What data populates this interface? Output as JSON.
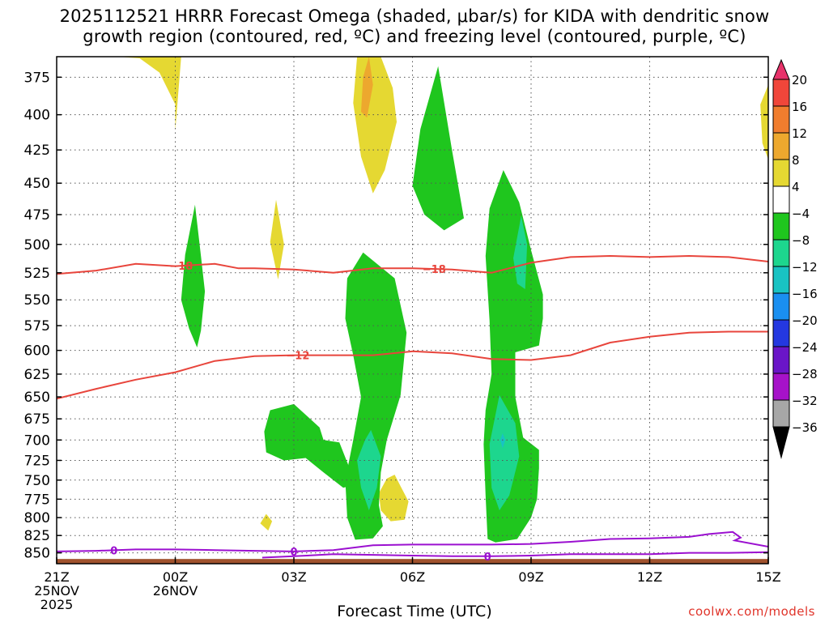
{
  "title_line1": "2025112521 HRRR Forecast Omega (shaded, μbar/s) for KIDA with dendritic snow",
  "title_line2": "growth region (contoured, red, ºC) and freezing level (contoured, purple, ºC)",
  "credit": "coolwx.com/models",
  "colors": {
    "temp_contour": "#e8453c",
    "freezing_contour": "#9b10d0",
    "ground": "#a0522d",
    "grid": "#555555"
  },
  "chart_data": {
    "type": "heatmap",
    "title": "2025112521 HRRR Forecast Omega (shaded, μbar/s) for KIDA with dendritic snow growth region (contoured, red, ºC) and freezing level (contoured, purple, ºC)",
    "xlabel": "Forecast Time (UTC)",
    "ylabel": "",
    "x_hours_range": [
      0,
      18
    ],
    "x_ticks": [
      {
        "hour": 0,
        "lines": [
          "21Z",
          "25NOV",
          "2025"
        ]
      },
      {
        "hour": 3,
        "lines": [
          "00Z",
          "26NOV"
        ]
      },
      {
        "hour": 6,
        "lines": [
          "03Z"
        ]
      },
      {
        "hour": 9,
        "lines": [
          "06Z"
        ]
      },
      {
        "hour": 12,
        "lines": [
          "09Z"
        ]
      },
      {
        "hour": 15,
        "lines": [
          "12Z"
        ]
      },
      {
        "hour": 18,
        "lines": [
          "15Z"
        ]
      }
    ],
    "y_range_hPa": [
      362,
      866
    ],
    "y_ticks_hPa": [
      375,
      400,
      425,
      450,
      475,
      500,
      525,
      550,
      575,
      600,
      625,
      650,
      675,
      700,
      725,
      750,
      775,
      800,
      825,
      850
    ],
    "colorbar": {
      "labels": [
        "20",
        "16",
        "12",
        "8",
        "4",
        "−4",
        "−8",
        "−12",
        "−16",
        "−20",
        "−24",
        "−28",
        "−32",
        "−36"
      ],
      "colors": [
        "#e8336a",
        "#f0463a",
        "#f07d2e",
        "#eda82e",
        "#e5d832",
        "#ffffff",
        "#1fc61e",
        "#1dd68e",
        "#19c3c3",
        "#1a8ff0",
        "#2438e0",
        "#6a15c8",
        "#a612c9",
        "#a7a7a7"
      ]
    },
    "omega_regions": [
      {
        "id": "y1",
        "level": "4",
        "points": [
          [
            1.55,
            362
          ],
          [
            2.1,
            363
          ],
          [
            2.6,
            372
          ],
          [
            3.0,
            393
          ],
          [
            3.0,
            411
          ],
          [
            3.15,
            362
          ]
        ]
      },
      {
        "id": "y2",
        "level": "4",
        "points": [
          [
            8.2,
            362
          ],
          [
            8.5,
            382
          ],
          [
            8.6,
            405
          ],
          [
            8.3,
            440
          ],
          [
            8.0,
            458
          ],
          [
            7.7,
            430
          ],
          [
            7.5,
            392
          ],
          [
            7.6,
            362
          ]
        ]
      },
      {
        "id": "o1",
        "level": "8",
        "points": [
          [
            7.9,
            362
          ],
          [
            8.0,
            380
          ],
          [
            7.85,
            402
          ],
          [
            7.7,
            398
          ],
          [
            7.75,
            375
          ]
        ]
      },
      {
        "id": "y3",
        "level": "4",
        "points": [
          [
            5.55,
            463
          ],
          [
            5.75,
            500
          ],
          [
            5.6,
            531
          ],
          [
            5.4,
            498
          ]
        ]
      },
      {
        "id": "y4",
        "level": "4",
        "points": [
          [
            18.0,
            380
          ],
          [
            17.8,
            393
          ],
          [
            17.85,
            420
          ],
          [
            18.0,
            432
          ]
        ]
      },
      {
        "id": "y5",
        "level": "4",
        "points": [
          [
            8.55,
            743
          ],
          [
            8.7,
            758
          ],
          [
            8.9,
            778
          ],
          [
            8.8,
            803
          ],
          [
            8.45,
            805
          ],
          [
            8.2,
            790
          ],
          [
            8.15,
            767
          ],
          [
            8.35,
            748
          ]
        ]
      },
      {
        "id": "y6",
        "level": "4",
        "points": [
          [
            5.3,
            795
          ],
          [
            5.45,
            805
          ],
          [
            5.35,
            818
          ],
          [
            5.15,
            808
          ]
        ]
      },
      {
        "id": "g1",
        "level": "-4",
        "points": [
          [
            3.5,
            467
          ],
          [
            3.65,
            510
          ],
          [
            3.75,
            542
          ],
          [
            3.65,
            580
          ],
          [
            3.55,
            597
          ],
          [
            3.35,
            578
          ],
          [
            3.15,
            550
          ],
          [
            3.25,
            509
          ]
        ]
      },
      {
        "id": "g2",
        "level": "-4",
        "points": [
          [
            9.65,
            368
          ],
          [
            10.0,
            425
          ],
          [
            10.3,
            478
          ],
          [
            9.8,
            488
          ],
          [
            9.3,
            475
          ],
          [
            9.0,
            452
          ],
          [
            9.2,
            410
          ]
        ]
      },
      {
        "id": "g3",
        "level": "-4",
        "points": [
          [
            7.75,
            507
          ],
          [
            8.55,
            530
          ],
          [
            8.85,
            582
          ],
          [
            8.7,
            648
          ],
          [
            8.35,
            700
          ],
          [
            8.2,
            740
          ],
          [
            8.15,
            783
          ],
          [
            8.25,
            812
          ],
          [
            8.0,
            829
          ],
          [
            7.55,
            831
          ],
          [
            7.35,
            800
          ],
          [
            7.3,
            750
          ],
          [
            7.5,
            700
          ],
          [
            7.7,
            650
          ],
          [
            7.5,
            605
          ],
          [
            7.3,
            568
          ],
          [
            7.35,
            530
          ]
        ]
      },
      {
        "id": "g4",
        "level": "-4",
        "points": [
          [
            6.0,
            658
          ],
          [
            6.65,
            685
          ],
          [
            6.75,
            700
          ],
          [
            7.15,
            703
          ],
          [
            7.45,
            740
          ],
          [
            7.6,
            755
          ],
          [
            7.25,
            760
          ],
          [
            6.75,
            740
          ],
          [
            6.3,
            722
          ],
          [
            5.75,
            725
          ],
          [
            5.3,
            715
          ],
          [
            5.25,
            690
          ],
          [
            5.4,
            665
          ]
        ]
      },
      {
        "id": "g5",
        "level": "-4",
        "points": [
          [
            11.3,
            440
          ],
          [
            11.7,
            465
          ],
          [
            12.0,
            505
          ],
          [
            12.3,
            545
          ],
          [
            12.3,
            568
          ],
          [
            12.2,
            595
          ],
          [
            11.6,
            602
          ],
          [
            11.6,
            650
          ],
          [
            11.8,
            697
          ],
          [
            12.2,
            712
          ],
          [
            12.2,
            735
          ],
          [
            12.15,
            775
          ],
          [
            12.0,
            800
          ],
          [
            11.65,
            830
          ],
          [
            11.1,
            835
          ],
          [
            10.9,
            830
          ],
          [
            10.85,
            770
          ],
          [
            10.8,
            705
          ],
          [
            10.85,
            665
          ],
          [
            11.0,
            625
          ],
          [
            10.95,
            570
          ],
          [
            10.85,
            510
          ],
          [
            10.95,
            470
          ]
        ]
      },
      {
        "id": "c1",
        "level": "-8",
        "points": [
          [
            7.95,
            688
          ],
          [
            8.2,
            720
          ],
          [
            8.1,
            760
          ],
          [
            7.9,
            790
          ],
          [
            7.7,
            760
          ],
          [
            7.6,
            725
          ],
          [
            7.8,
            700
          ]
        ]
      },
      {
        "id": "c2",
        "level": "-8",
        "points": [
          [
            11.2,
            648
          ],
          [
            11.6,
            680
          ],
          [
            11.7,
            720
          ],
          [
            11.45,
            770
          ],
          [
            11.2,
            790
          ],
          [
            11.0,
            760
          ],
          [
            10.95,
            705
          ]
        ]
      },
      {
        "id": "c3",
        "level": "-8",
        "points": [
          [
            11.75,
            476
          ],
          [
            11.9,
            500
          ],
          [
            11.85,
            540
          ],
          [
            11.65,
            535
          ],
          [
            11.55,
            512
          ]
        ]
      },
      {
        "id": "b1",
        "level": "-12",
        "points": [
          [
            11.28,
            692
          ],
          [
            11.35,
            700
          ],
          [
            11.28,
            710
          ],
          [
            11.22,
            700
          ]
        ]
      }
    ],
    "temperature_contours": [
      {
        "label": "−18",
        "label_at_hours": [
          3.15,
          9.55
        ],
        "points": [
          [
            0,
            526
          ],
          [
            1,
            523
          ],
          [
            2,
            517
          ],
          [
            3,
            519
          ],
          [
            4,
            517
          ],
          [
            4.6,
            521
          ],
          [
            5,
            521
          ],
          [
            6,
            522
          ],
          [
            7,
            525
          ],
          [
            8,
            521
          ],
          [
            9,
            521
          ],
          [
            10,
            522
          ],
          [
            11,
            525
          ],
          [
            12,
            516
          ],
          [
            13,
            511
          ],
          [
            14,
            510
          ],
          [
            15,
            511
          ],
          [
            16,
            510
          ],
          [
            17,
            511
          ],
          [
            18,
            515
          ]
        ]
      },
      {
        "label": "−12",
        "label_at_hours": [
          6.1
        ],
        "points": [
          [
            0,
            652
          ],
          [
            1,
            641
          ],
          [
            2,
            631
          ],
          [
            3,
            623
          ],
          [
            4,
            611
          ],
          [
            5,
            606
          ],
          [
            6,
            605
          ],
          [
            7,
            605
          ],
          [
            8,
            605
          ],
          [
            9,
            601
          ],
          [
            10,
            603
          ],
          [
            11,
            609
          ],
          [
            12,
            610
          ],
          [
            13,
            605
          ],
          [
            14,
            592
          ],
          [
            15,
            586
          ],
          [
            16,
            582
          ],
          [
            17,
            581
          ],
          [
            18,
            581
          ]
        ]
      }
    ],
    "freezing_contours": [
      {
        "label": "0",
        "label_at_hours": [
          1.45,
          6.0
        ],
        "points": [
          [
            0,
            848
          ],
          [
            1,
            847
          ],
          [
            2,
            845
          ],
          [
            3,
            845
          ],
          [
            4,
            846
          ],
          [
            5,
            847
          ],
          [
            6,
            848
          ],
          [
            7,
            846
          ],
          [
            8,
            839
          ],
          [
            9,
            838
          ],
          [
            10,
            838
          ],
          [
            11,
            838
          ],
          [
            12,
            837
          ],
          [
            13,
            834
          ],
          [
            14,
            830
          ],
          [
            15,
            829
          ],
          [
            16,
            827
          ],
          [
            16.5,
            823
          ],
          [
            17.1,
            820
          ],
          [
            17.3,
            828
          ],
          [
            17.15,
            832
          ],
          [
            18,
            841
          ]
        ]
      },
      {
        "label": "0",
        "label_at_hours": [
          10.9
        ],
        "points": [
          [
            5.2,
            857
          ],
          [
            6,
            855
          ],
          [
            7,
            852
          ],
          [
            8,
            853
          ],
          [
            9,
            854
          ],
          [
            10,
            855
          ],
          [
            11,
            855
          ],
          [
            12,
            854
          ],
          [
            13,
            852
          ],
          [
            14,
            852
          ],
          [
            15,
            852
          ],
          [
            16,
            850
          ],
          [
            17,
            850
          ],
          [
            18,
            849
          ]
        ]
      }
    ],
    "ground_top_hPa": 859
  }
}
